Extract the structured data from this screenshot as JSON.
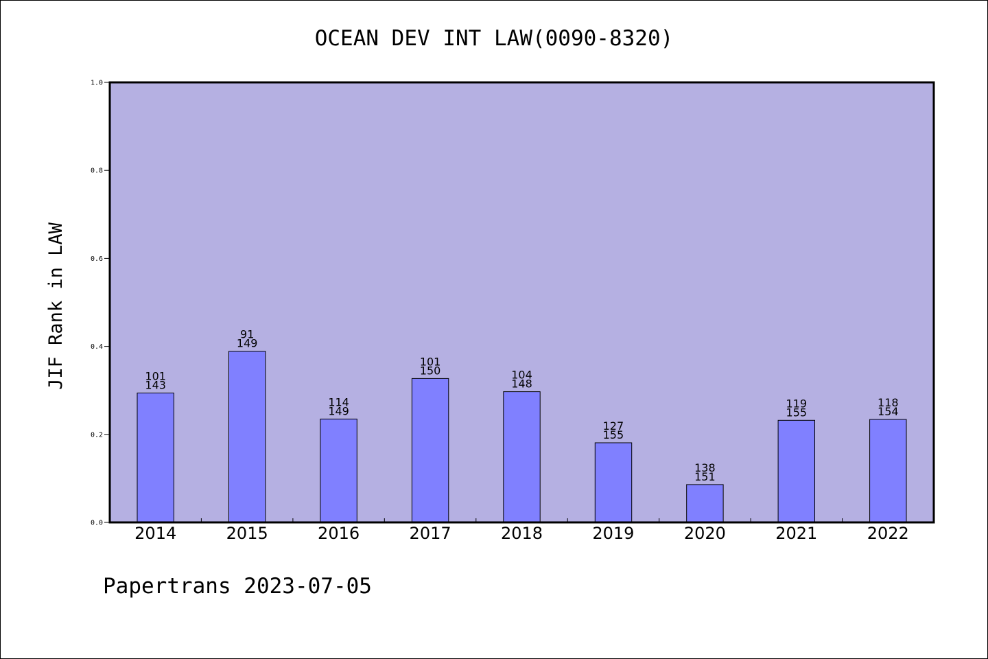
{
  "colors": {
    "plot_background": "#b5b0e2",
    "bar_fill": "#8080ff",
    "bar_stroke": "#000000",
    "axis": "#000000",
    "page_background": "#ffffff"
  },
  "footer": "Papertrans 2023-07-05",
  "chart_data": {
    "type": "bar",
    "title": "OCEAN DEV INT LAW(0090-8320)",
    "xlabel": "",
    "ylabel": "JIF Rank in LAW",
    "ylim": [
      0,
      1.0
    ],
    "yticks": [
      "0.0",
      "0.2",
      "0.4",
      "0.6",
      "0.8",
      "1.0"
    ],
    "grid": false,
    "categories": [
      "2014",
      "2015",
      "2016",
      "2017",
      "2018",
      "2019",
      "2020",
      "2021",
      "2022"
    ],
    "values": [
      0.294,
      0.389,
      0.235,
      0.327,
      0.297,
      0.181,
      0.086,
      0.232,
      0.234
    ],
    "rank": [
      "101",
      "91",
      "114",
      "101",
      "104",
      "127",
      "138",
      "119",
      "118"
    ],
    "total": [
      "143",
      "149",
      "149",
      "150",
      "148",
      "155",
      "151",
      "155",
      "154"
    ]
  }
}
